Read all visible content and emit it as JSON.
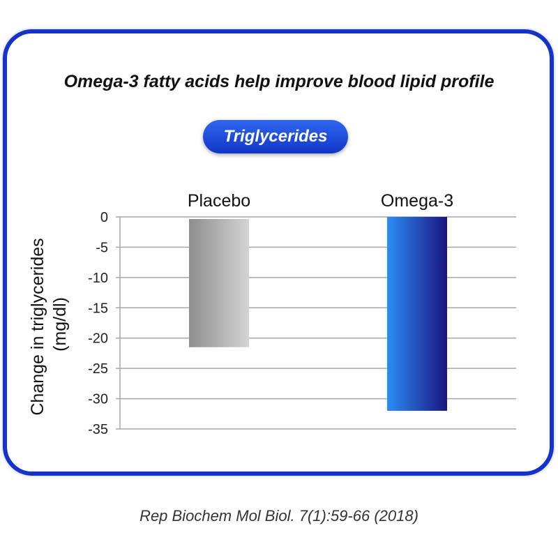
{
  "header": {
    "title": "Omega-3 fatty acids help improve blood lipid profile",
    "badge": "Triglycerides"
  },
  "chart_data": {
    "type": "bar",
    "categories": [
      "Placebo",
      "Omega-3"
    ],
    "values": [
      -21.5,
      -32
    ],
    "ylabel": "Change in triglycerides (mg/dl)",
    "ylabel_lines": [
      "Change in triglycerides",
      "(mg/dl)"
    ],
    "ylim": [
      -35,
      0
    ],
    "yticks": [
      0,
      -5,
      -10,
      -15,
      -20,
      -25,
      -30,
      -35
    ],
    "grid": true,
    "category_labels_position": "top",
    "colors": {
      "placebo_dark": "#8e8e8e",
      "placebo_light": "#d4d4d4",
      "omega_light": "#2b8cf5",
      "omega_dark": "#1a1580",
      "grid": "#a7a7a7"
    }
  },
  "footer": {
    "citation": "Rep Biochem Mol Biol. 7(1):59-66 (2018)"
  },
  "theme": {
    "frame_color": "#1533c8"
  }
}
